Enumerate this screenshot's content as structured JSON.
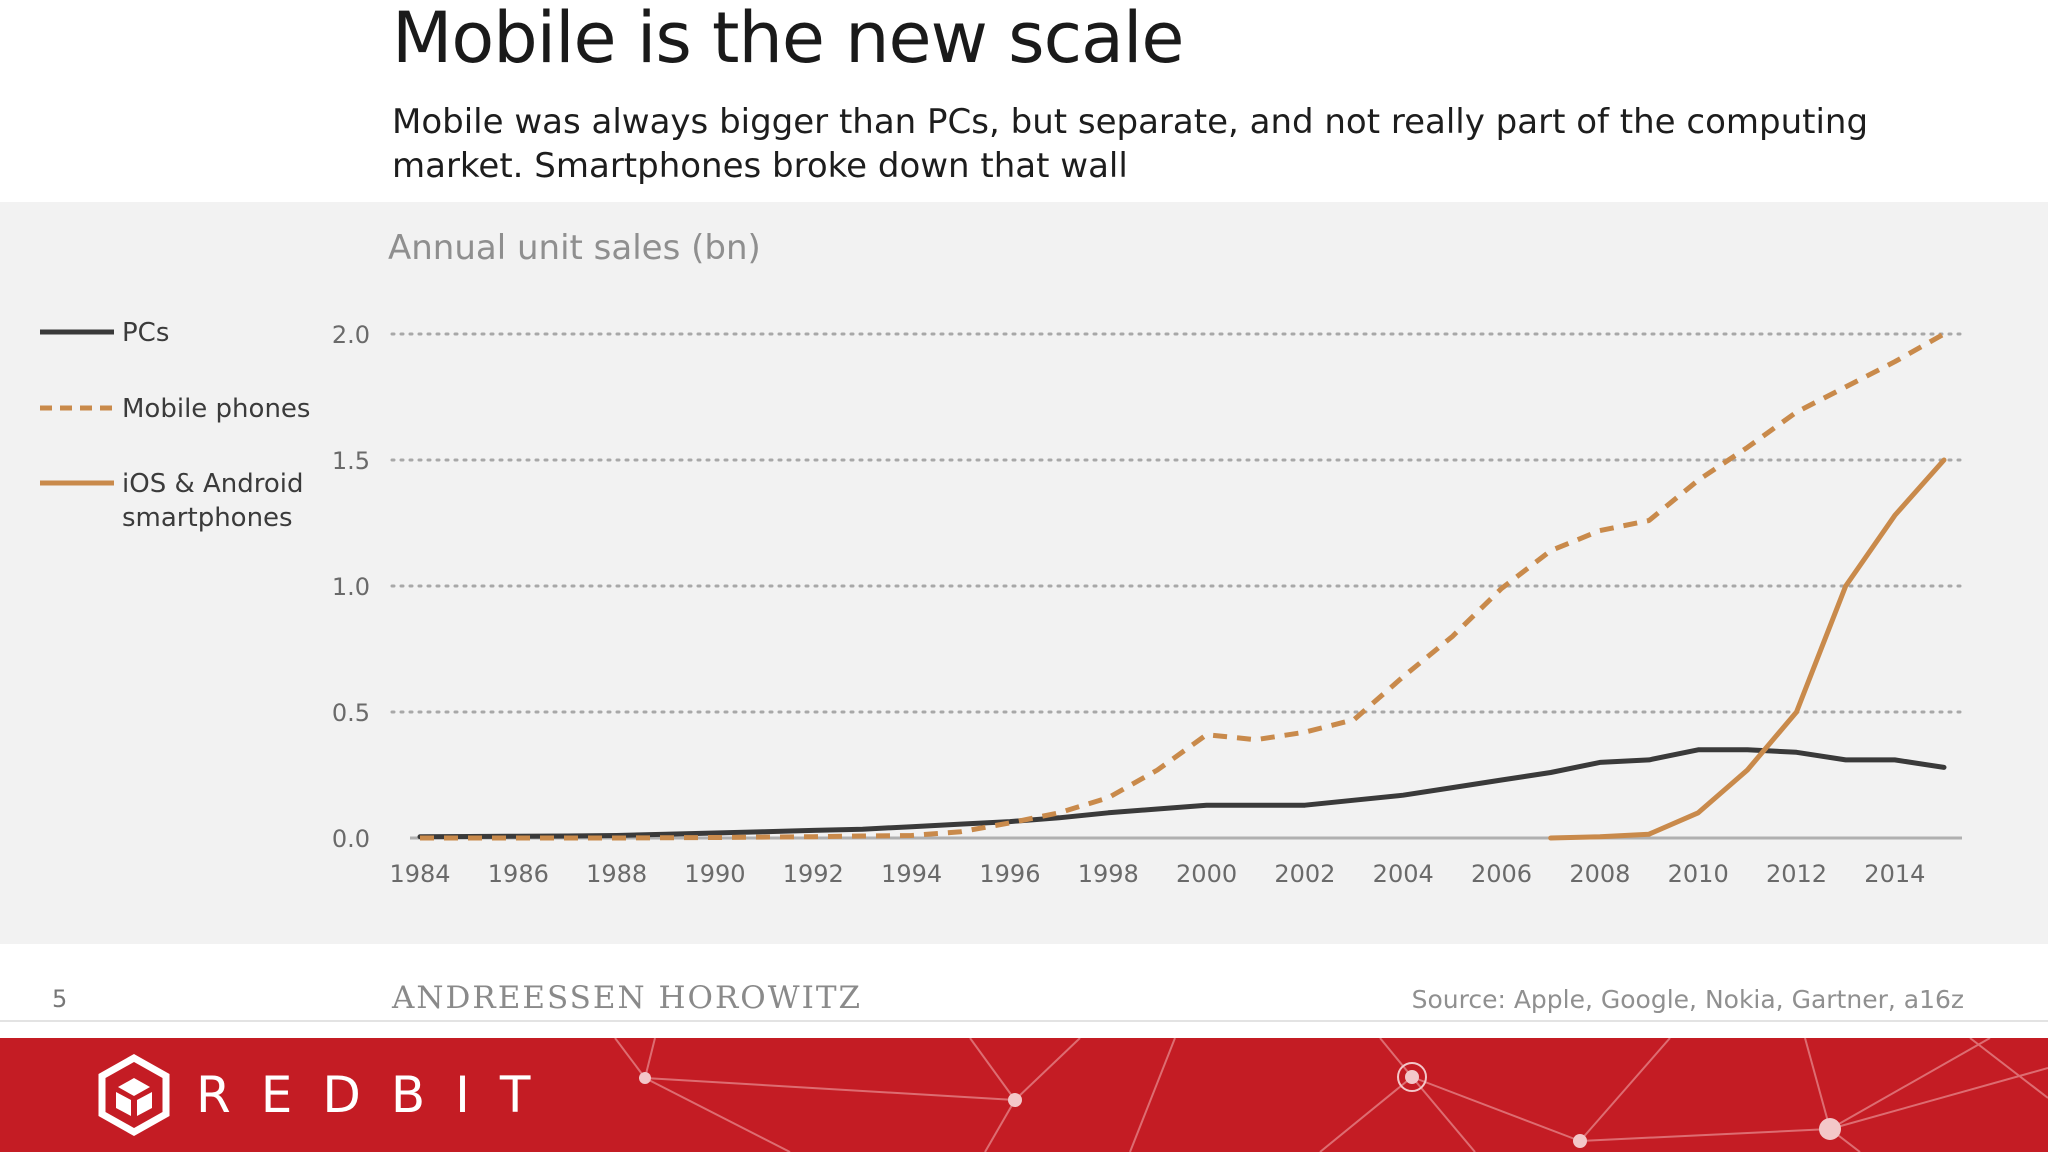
{
  "slide": {
    "title": "Mobile is the new scale",
    "subtitle": "Mobile was always bigger than PCs, but separate, and not really part of the computing market. Smartphones broke down that wall",
    "page_number": "5",
    "brand": "ANDREESSEN HOROWITZ",
    "source": "Source: Apple, Google, Nokia, Gartner, a16z"
  },
  "banner": {
    "logo_text": "REDBIT",
    "background_color": "#c41c24"
  },
  "chart_data": {
    "type": "line",
    "title": "Annual unit sales (bn)",
    "xlabel": "",
    "ylabel": "",
    "xlim": [
      1984,
      2015
    ],
    "ylim": [
      0,
      2.0
    ],
    "x_ticks": [
      "1984",
      "1986",
      "1988",
      "1990",
      "1992",
      "1994",
      "1996",
      "1998",
      "2000",
      "2002",
      "2004",
      "2006",
      "2008",
      "2010",
      "2012",
      "2014"
    ],
    "y_ticks": [
      "0.0",
      "0.5",
      "1.0",
      "1.5",
      "2.0"
    ],
    "grid": "horizontal dotted",
    "legend_position": "left",
    "series": [
      {
        "name": "PCs",
        "style": "solid",
        "color": "#3a3a3a",
        "x": [
          1984,
          1985,
          1986,
          1987,
          1988,
          1989,
          1990,
          1991,
          1992,
          1993,
          1994,
          1995,
          1996,
          1997,
          1998,
          1999,
          2000,
          2001,
          2002,
          2003,
          2004,
          2005,
          2006,
          2007,
          2008,
          2009,
          2010,
          2011,
          2012,
          2013,
          2014,
          2015
        ],
        "values": [
          0.005,
          0.006,
          0.007,
          0.008,
          0.01,
          0.015,
          0.02,
          0.025,
          0.03,
          0.035,
          0.045,
          0.055,
          0.065,
          0.08,
          0.1,
          0.115,
          0.13,
          0.13,
          0.13,
          0.15,
          0.17,
          0.2,
          0.23,
          0.26,
          0.3,
          0.31,
          0.35,
          0.35,
          0.34,
          0.31,
          0.31,
          0.28
        ]
      },
      {
        "name": "Mobile phones",
        "style": "dashed",
        "color": "#c98a4b",
        "x": [
          1984,
          1986,
          1988,
          1990,
          1992,
          1993,
          1994,
          1995,
          1996,
          1997,
          1998,
          1999,
          2000,
          2001,
          2002,
          2003,
          2004,
          2005,
          2006,
          2007,
          2008,
          2009,
          2010,
          2011,
          2012,
          2013,
          2014,
          2015
        ],
        "values": [
          0.0,
          0.0,
          0.0,
          0.002,
          0.005,
          0.008,
          0.01,
          0.025,
          0.06,
          0.1,
          0.16,
          0.27,
          0.41,
          0.39,
          0.42,
          0.47,
          0.64,
          0.8,
          0.99,
          1.14,
          1.22,
          1.26,
          1.42,
          1.55,
          1.69,
          1.79,
          1.89,
          2.0
        ]
      },
      {
        "name": "iOS & Android smartphones",
        "style": "solid",
        "color": "#c98a4b",
        "x": [
          2007,
          2008,
          2009,
          2010,
          2011,
          2012,
          2013,
          2014,
          2015
        ],
        "values": [
          0.0,
          0.005,
          0.015,
          0.1,
          0.27,
          0.5,
          1.0,
          1.28,
          1.5
        ]
      }
    ]
  }
}
